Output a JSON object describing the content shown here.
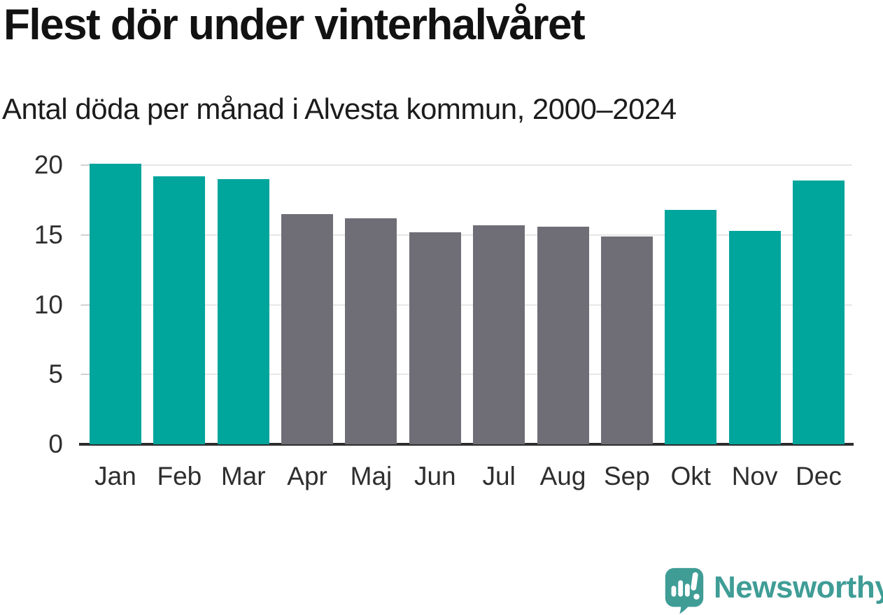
{
  "header": {
    "title": "Flest dör under vinterhalvåret",
    "subtitle": "Antal döda per månad i Alvesta kommun, 2000–2024"
  },
  "chart_data": {
    "type": "bar",
    "title": "Flest dör under vinterhalvåret",
    "subtitle": "Antal döda per månad i Alvesta kommun, 2000–2024",
    "categories": [
      "Jan",
      "Feb",
      "Mar",
      "Apr",
      "Maj",
      "Jun",
      "Jul",
      "Aug",
      "Sep",
      "Okt",
      "Nov",
      "Dec"
    ],
    "values": [
      20.1,
      19.2,
      19.0,
      16.5,
      16.2,
      15.2,
      15.7,
      15.6,
      14.9,
      16.8,
      15.3,
      18.9
    ],
    "highlighted_categories": [
      "Jan",
      "Feb",
      "Mar",
      "Okt",
      "Nov",
      "Dec"
    ],
    "colors": {
      "highlight": "#00a59c",
      "muted": "#6f6e77"
    },
    "xlabel": "",
    "ylabel": "",
    "ylim": [
      0,
      20
    ],
    "yticks": [
      0,
      5,
      10,
      15,
      20
    ],
    "grid": true,
    "legend_position": "none"
  },
  "footer": {
    "brand": "Newsworthy",
    "brand_color": "#3f9d96",
    "logo_icon": "speech-bubble-bar-chart-icon"
  }
}
